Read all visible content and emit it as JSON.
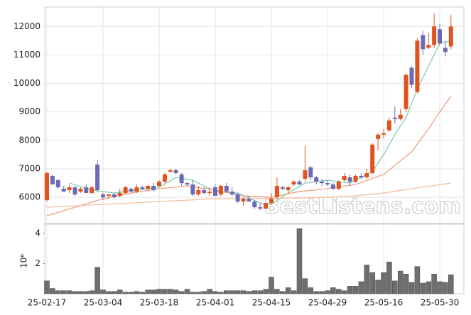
{
  "chart_data": [
    {
      "type": "candlestick",
      "categories": [
        "25-02-17",
        null,
        null,
        null,
        null,
        null,
        null,
        null,
        null,
        null,
        "25-03-04",
        null,
        null,
        null,
        null,
        null,
        null,
        null,
        null,
        null,
        "25-03-18",
        null,
        null,
        null,
        null,
        null,
        null,
        null,
        null,
        null,
        "25-04-01",
        null,
        null,
        null,
        null,
        null,
        null,
        null,
        null,
        null,
        "25-04-15",
        null,
        null,
        null,
        null,
        null,
        null,
        null,
        null,
        null,
        "25-04-29",
        null,
        null,
        null,
        null,
        null,
        null,
        null,
        null,
        null,
        "25-05-16",
        null,
        null,
        null,
        null,
        null,
        null,
        null,
        null,
        null,
        "25-05-30",
        null,
        null
      ],
      "open": [
        5900,
        6750,
        6600,
        6300,
        6250,
        6350,
        6200,
        6350,
        6150,
        7150,
        6100,
        6050,
        6100,
        6050,
        6150,
        6300,
        6200,
        6350,
        6300,
        6400,
        6400,
        6550,
        6900,
        6950,
        6800,
        6500,
        6450,
        6100,
        6250,
        6150,
        6350,
        6100,
        6400,
        6200,
        6100,
        5850,
        5950,
        5850,
        5650,
        5600,
        5800,
        6000,
        6350,
        6250,
        6450,
        6550,
        6650,
        7050,
        6700,
        6550,
        6500,
        6450,
        6300,
        6600,
        6700,
        6550,
        6750,
        6700,
        6850,
        8050,
        8200,
        8350,
        8800,
        8750,
        9100,
        10550,
        9700,
        11700,
        11250,
        11350,
        11900,
        11250,
        11300
      ],
      "high": [
        6900,
        6800,
        6650,
        6400,
        6450,
        6400,
        6350,
        6450,
        6400,
        7300,
        6150,
        6100,
        6150,
        6300,
        6400,
        6350,
        6450,
        6400,
        6450,
        6500,
        6600,
        6850,
        7000,
        7000,
        6850,
        6550,
        6600,
        6400,
        6350,
        6350,
        6450,
        6450,
        6500,
        6350,
        6150,
        6000,
        6050,
        5900,
        5800,
        5800,
        6150,
        6700,
        6400,
        6400,
        6600,
        6600,
        7800,
        7100,
        6750,
        6650,
        6600,
        6500,
        6600,
        6850,
        6800,
        6800,
        6850,
        7000,
        7900,
        8250,
        8400,
        8800,
        9200,
        9100,
        10350,
        10600,
        11600,
        11850,
        11800,
        12450,
        12100,
        11500,
        12400
      ],
      "low": [
        5850,
        6450,
        6300,
        6200,
        6150,
        6050,
        6150,
        6150,
        6100,
        6200,
        5900,
        5950,
        5950,
        6000,
        6100,
        6150,
        6150,
        6250,
        6250,
        6200,
        6350,
        6500,
        6850,
        6800,
        6400,
        6400,
        6050,
        6050,
        6100,
        6050,
        6050,
        6050,
        6150,
        6050,
        5800,
        5700,
        5850,
        5600,
        5550,
        5600,
        5750,
        5950,
        6250,
        6150,
        6400,
        6450,
        6550,
        6600,
        6450,
        6400,
        6400,
        6250,
        6250,
        6550,
        6400,
        6500,
        6650,
        6650,
        6800,
        7650,
        8050,
        8300,
        8600,
        8700,
        9000,
        9850,
        9650,
        11000,
        11200,
        11250,
        11350,
        10950,
        11200
      ],
      "close": [
        6850,
        6450,
        6350,
        6200,
        6350,
        6100,
        6300,
        6150,
        6350,
        6250,
        6000,
        6100,
        6000,
        6150,
        6350,
        6200,
        6350,
        6300,
        6400,
        6250,
        6550,
        6800,
        6950,
        6850,
        6500,
        6450,
        6100,
        6250,
        6150,
        6200,
        6050,
        6400,
        6200,
        6100,
        5850,
        5950,
        5850,
        5650,
        5600,
        5800,
        5950,
        6400,
        6300,
        6350,
        6550,
        6450,
        6950,
        6700,
        6550,
        6500,
        6450,
        6300,
        6550,
        6750,
        6550,
        6750,
        6700,
        6850,
        7850,
        8200,
        8250,
        8700,
        8750,
        8900,
        10300,
        9950,
        11500,
        11200,
        11350,
        12000,
        11400,
        11100,
        12000
      ],
      "up_color": "#e0531f",
      "down_color": "#6b6bb5",
      "ylim": [
        5080,
        12680
      ],
      "yticks": [
        6000,
        7000,
        8000,
        9000,
        10000,
        11000,
        12000
      ],
      "grid": true,
      "lines": [
        {
          "color": "#7ecfb6",
          "x": [
            4,
            8,
            12,
            16,
            20,
            23,
            26,
            30,
            34,
            38,
            40,
            43,
            46,
            50,
            54,
            58,
            60,
            62,
            64,
            66,
            68,
            70,
            72
          ],
          "values": [
            6500,
            6250,
            6150,
            6250,
            6350,
            6700,
            6600,
            6200,
            6150,
            5800,
            5750,
            6150,
            6500,
            6600,
            6500,
            6900,
            7500,
            8200,
            8800,
            9800,
            10600,
            11400,
            11500
          ]
        },
        {
          "color": "#f0a080",
          "x": [
            0,
            5,
            10,
            15,
            20,
            25,
            30,
            35,
            40,
            45,
            50,
            55,
            60,
            65,
            68,
            70,
            72
          ],
          "values": [
            5350,
            5650,
            5950,
            6150,
            6300,
            6400,
            6250,
            6050,
            6000,
            6200,
            6300,
            6450,
            6800,
            7600,
            8400,
            9000,
            9550
          ]
        },
        {
          "color": "#f5bfa0",
          "x": [
            0,
            10,
            20,
            30,
            40,
            50,
            55,
            60,
            65,
            72
          ],
          "values": [
            5650,
            5750,
            5850,
            5950,
            5950,
            6000,
            6050,
            6150,
            6300,
            6500
          ]
        }
      ],
      "watermark": "BestListens.com"
    },
    {
      "type": "bar",
      "color": "#6e6e6e",
      "axis_label": "10⁶",
      "values": [
        0.85,
        0.35,
        0.2,
        0.2,
        0.2,
        0.15,
        0.15,
        0.15,
        0.2,
        1.75,
        0.25,
        0.15,
        0.15,
        0.25,
        0.1,
        0.1,
        0.15,
        0.1,
        0.25,
        0.25,
        0.3,
        0.3,
        0.3,
        0.25,
        0.15,
        0.3,
        0.1,
        0.1,
        0.15,
        0.3,
        0.15,
        0.1,
        0.2,
        0.2,
        0.2,
        0.2,
        0.15,
        0.2,
        0.2,
        0.3,
        1.1,
        0.3,
        0.15,
        0.4,
        0.2,
        4.3,
        1,
        0.4,
        0.15,
        0.15,
        0.2,
        0.4,
        0.3,
        0.2,
        0.5,
        0.5,
        0.8,
        1.9,
        1.4,
        0.9,
        1.4,
        2.1,
        0.85,
        1.5,
        1.3,
        0.75,
        1.8,
        0.7,
        0.8,
        1.3,
        0.8,
        0.75,
        1.25
      ],
      "ylim": [
        0,
        4.6
      ],
      "yticks": [
        2,
        4
      ]
    }
  ]
}
